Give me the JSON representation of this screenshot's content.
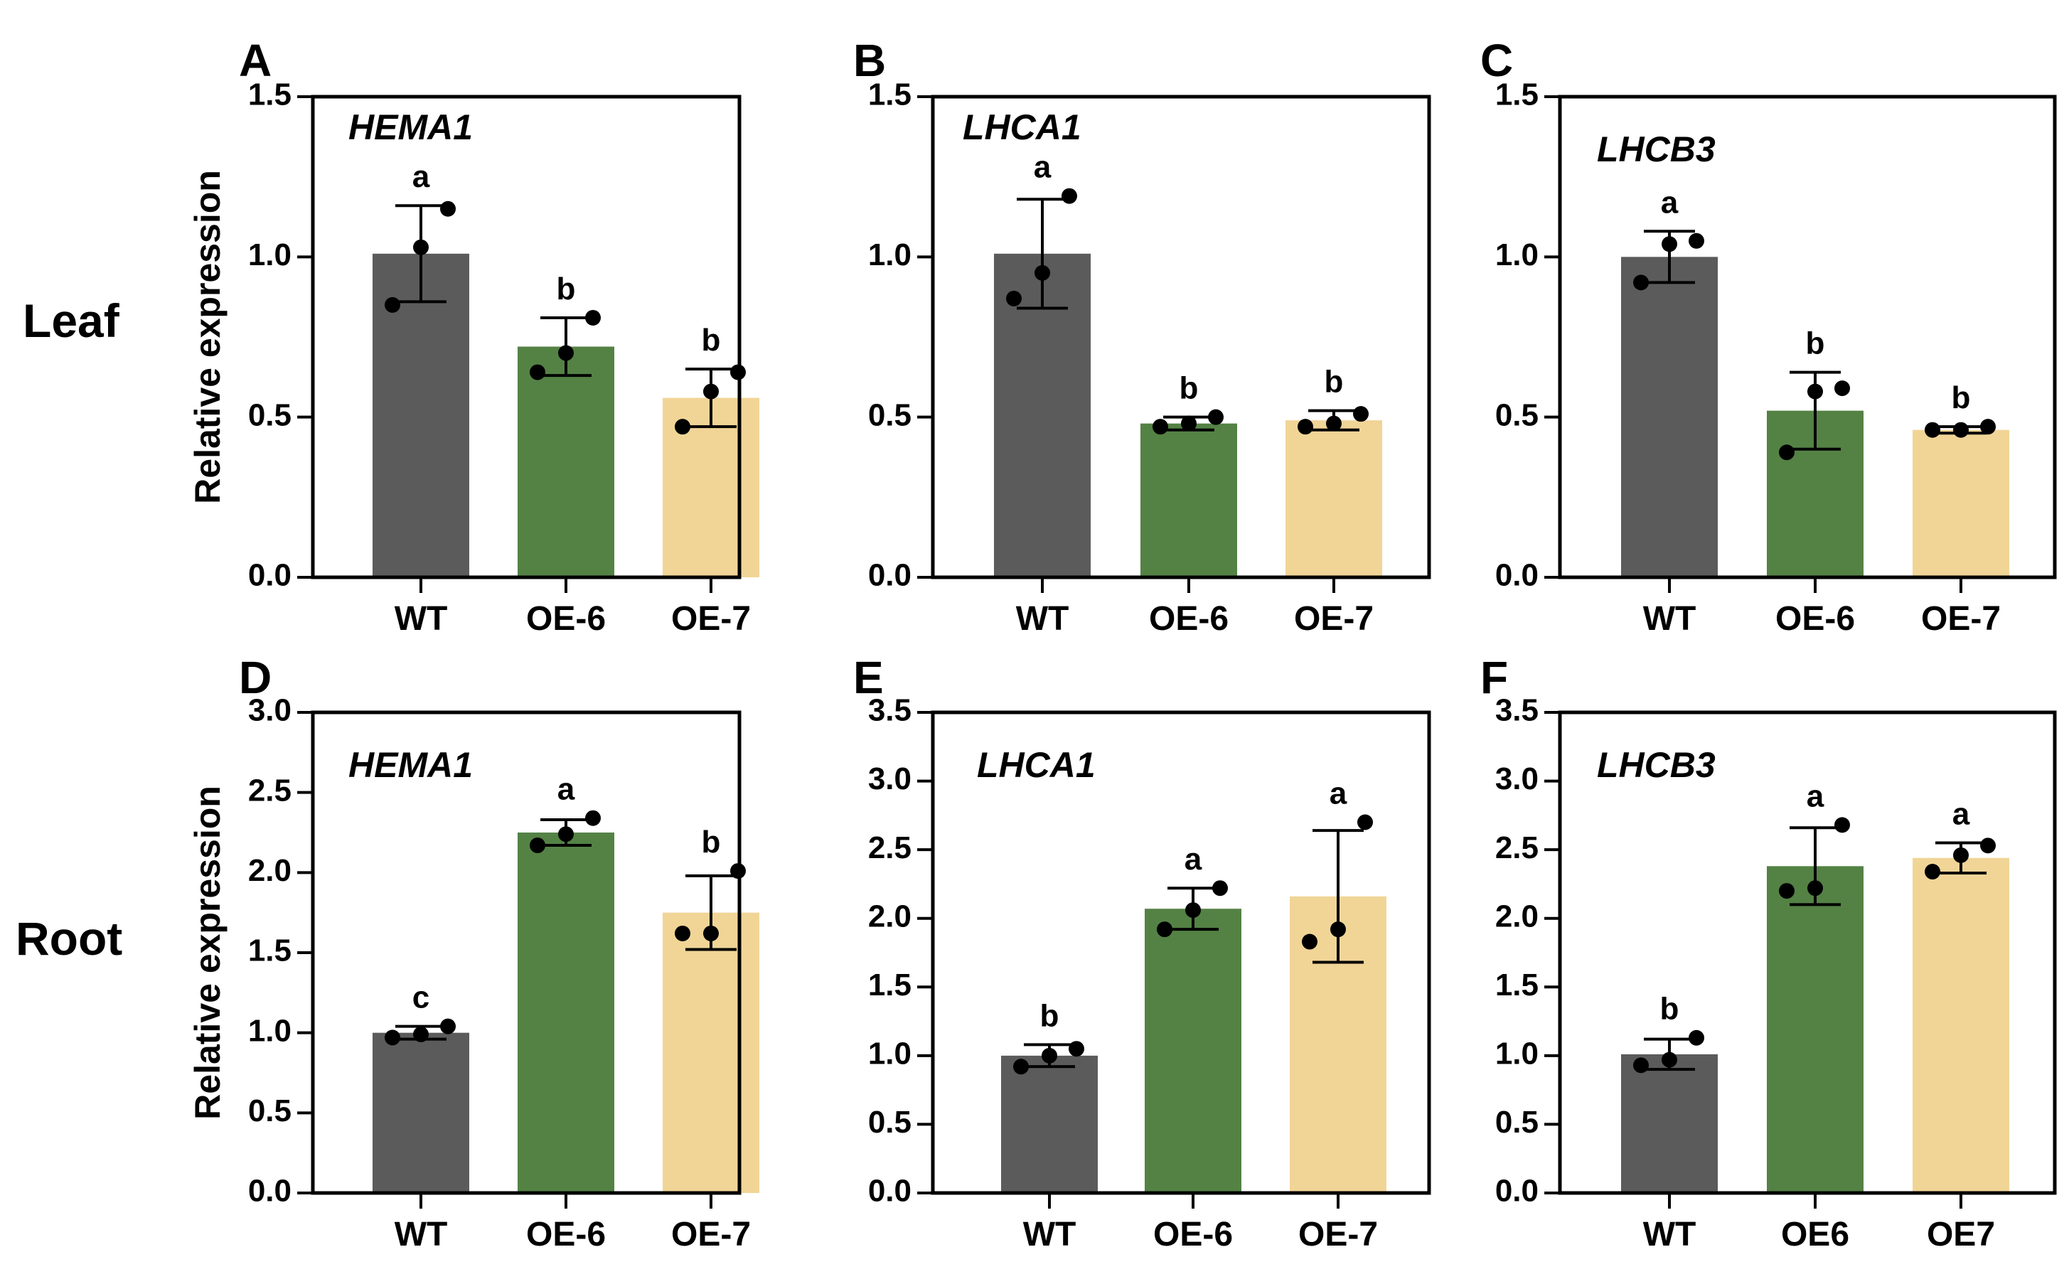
{
  "row_labels": [
    "Leaf",
    "Root"
  ],
  "colors": {
    "WT": "#5b5b5b",
    "OE-6": "#548245",
    "OE-7": "#f1d597",
    "axis": "#000000"
  },
  "chart_data": [
    {
      "type": "bar",
      "panel": "A",
      "row": "Leaf",
      "title": "HEMA1",
      "ylabel": "Relative expression",
      "ylim": [
        0,
        1.5
      ],
      "yticks": [
        "0.0",
        "0.5",
        "1.0",
        "1.5"
      ],
      "categories": [
        "WT",
        "OE-6",
        "OE-7"
      ],
      "values": [
        1.01,
        0.72,
        0.56
      ],
      "errors": [
        0.15,
        0.09,
        0.09
      ],
      "points": [
        [
          0.85,
          1.03,
          1.15
        ],
        [
          0.64,
          0.7,
          0.81
        ],
        [
          0.47,
          0.58,
          0.64
        ]
      ],
      "letters": [
        "a",
        "b",
        "b"
      ]
    },
    {
      "type": "bar",
      "panel": "B",
      "row": "Leaf",
      "title": "LHCA1",
      "ylabel": "",
      "ylim": [
        0,
        1.5
      ],
      "yticks": [
        "0.0",
        "0.5",
        "1.0",
        "1.5"
      ],
      "categories": [
        "WT",
        "OE-6",
        "OE-7"
      ],
      "values": [
        1.01,
        0.48,
        0.49
      ],
      "errors": [
        0.17,
        0.02,
        0.03
      ],
      "points": [
        [
          0.87,
          0.95,
          1.19
        ],
        [
          0.47,
          0.48,
          0.5
        ],
        [
          0.47,
          0.48,
          0.51
        ]
      ],
      "letters": [
        "a",
        "b",
        "b"
      ]
    },
    {
      "type": "bar",
      "panel": "C",
      "row": "Leaf",
      "title": "LHCB3",
      "ylabel": "",
      "ylim": [
        0,
        1.5
      ],
      "yticks": [
        "0.0",
        "0.5",
        "1.0",
        "1.5"
      ],
      "categories": [
        "WT",
        "OE-6",
        "OE-7"
      ],
      "values": [
        1.0,
        0.52,
        0.46
      ],
      "errors": [
        0.08,
        0.12,
        0.01
      ],
      "points": [
        [
          0.92,
          1.04,
          1.05
        ],
        [
          0.39,
          0.58,
          0.59
        ],
        [
          0.46,
          0.46,
          0.47
        ]
      ],
      "letters": [
        "a",
        "b",
        "b"
      ]
    },
    {
      "type": "bar",
      "panel": "D",
      "row": "Root",
      "title": "HEMA1",
      "ylabel": "Relative expression",
      "ylim": [
        0,
        3.0
      ],
      "yticks": [
        "0.0",
        "0.5",
        "1.0",
        "1.5",
        "2.0",
        "2.5",
        "3.0"
      ],
      "categories": [
        "WT",
        "OE-6",
        "OE-7"
      ],
      "values": [
        1.0,
        2.25,
        1.75
      ],
      "errors": [
        0.04,
        0.08,
        0.23
      ],
      "points": [
        [
          0.97,
          0.99,
          1.04
        ],
        [
          2.17,
          2.24,
          2.34
        ],
        [
          1.62,
          1.62,
          2.01
        ]
      ],
      "letters": [
        "c",
        "a",
        "b"
      ]
    },
    {
      "type": "bar",
      "panel": "E",
      "row": "Root",
      "title": "LHCA1",
      "ylabel": "",
      "ylim": [
        0,
        3.5
      ],
      "yticks": [
        "0.0",
        "0.5",
        "1.0",
        "1.5",
        "2.0",
        "2.5",
        "3.0",
        "3.5"
      ],
      "categories": [
        "WT",
        "OE-6",
        "OE-7"
      ],
      "values": [
        1.0,
        2.07,
        2.16
      ],
      "errors": [
        0.08,
        0.15,
        0.48
      ],
      "points": [
        [
          0.92,
          1.0,
          1.05
        ],
        [
          1.92,
          2.06,
          2.22
        ],
        [
          1.83,
          1.92,
          2.7
        ]
      ],
      "letters": [
        "b",
        "a",
        "a"
      ]
    },
    {
      "type": "bar",
      "panel": "F",
      "row": "Root",
      "title": "LHCB3",
      "ylabel": "",
      "ylim": [
        0,
        3.5
      ],
      "yticks": [
        "0.0",
        "0.5",
        "1.0",
        "1.5",
        "2.0",
        "2.5",
        "3.0",
        "3.5"
      ],
      "categories": [
        "WT",
        "OE6",
        "OE7"
      ],
      "values": [
        1.01,
        2.38,
        2.44
      ],
      "errors": [
        0.11,
        0.28,
        0.11
      ],
      "points": [
        [
          0.93,
          0.97,
          1.13
        ],
        [
          2.2,
          2.22,
          2.68
        ],
        [
          2.34,
          2.46,
          2.53
        ]
      ],
      "letters": [
        "b",
        "a",
        "a"
      ]
    }
  ]
}
